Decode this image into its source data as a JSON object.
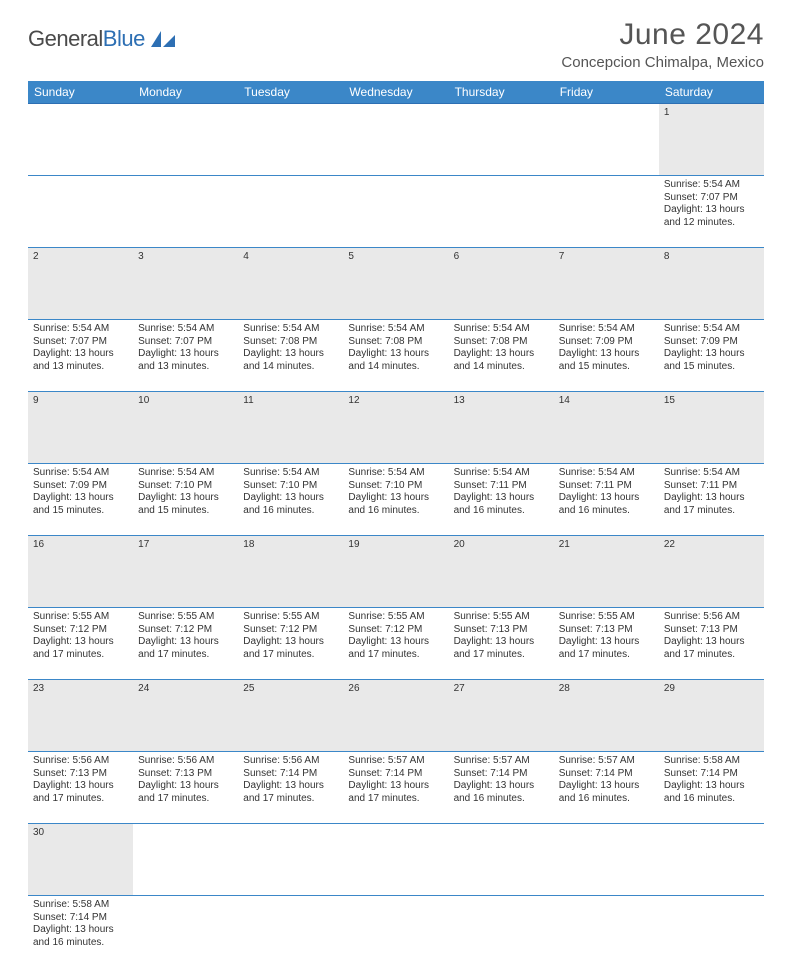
{
  "logo": {
    "text1": "General",
    "text2": "Blue"
  },
  "title": "June 2024",
  "subtitle": "Concepcion Chimalpa, Mexico",
  "colors": {
    "header_bg": "#3b87c8",
    "header_text": "#ffffff",
    "daynum_bg": "#e9e9e9",
    "cell_border": "#3b87c8",
    "text": "#333333",
    "title_text": "#555555",
    "logo_gray": "#4a4a4a",
    "logo_blue": "#2d6fb3"
  },
  "typography": {
    "title_fontsize": 30,
    "subtitle_fontsize": 15,
    "header_fontsize": 12,
    "daynum_fontsize": 11,
    "cell_fontsize": 10
  },
  "dayHeaders": [
    "Sunday",
    "Monday",
    "Tuesday",
    "Wednesday",
    "Thursday",
    "Friday",
    "Saturday"
  ],
  "weeks": [
    [
      null,
      null,
      null,
      null,
      null,
      null,
      {
        "n": "1",
        "sr": "Sunrise: 5:54 AM",
        "ss": "Sunset: 7:07 PM",
        "d1": "Daylight: 13 hours",
        "d2": "and 12 minutes."
      }
    ],
    [
      {
        "n": "2",
        "sr": "Sunrise: 5:54 AM",
        "ss": "Sunset: 7:07 PM",
        "d1": "Daylight: 13 hours",
        "d2": "and 13 minutes."
      },
      {
        "n": "3",
        "sr": "Sunrise: 5:54 AM",
        "ss": "Sunset: 7:07 PM",
        "d1": "Daylight: 13 hours",
        "d2": "and 13 minutes."
      },
      {
        "n": "4",
        "sr": "Sunrise: 5:54 AM",
        "ss": "Sunset: 7:08 PM",
        "d1": "Daylight: 13 hours",
        "d2": "and 14 minutes."
      },
      {
        "n": "5",
        "sr": "Sunrise: 5:54 AM",
        "ss": "Sunset: 7:08 PM",
        "d1": "Daylight: 13 hours",
        "d2": "and 14 minutes."
      },
      {
        "n": "6",
        "sr": "Sunrise: 5:54 AM",
        "ss": "Sunset: 7:08 PM",
        "d1": "Daylight: 13 hours",
        "d2": "and 14 minutes."
      },
      {
        "n": "7",
        "sr": "Sunrise: 5:54 AM",
        "ss": "Sunset: 7:09 PM",
        "d1": "Daylight: 13 hours",
        "d2": "and 15 minutes."
      },
      {
        "n": "8",
        "sr": "Sunrise: 5:54 AM",
        "ss": "Sunset: 7:09 PM",
        "d1": "Daylight: 13 hours",
        "d2": "and 15 minutes."
      }
    ],
    [
      {
        "n": "9",
        "sr": "Sunrise: 5:54 AM",
        "ss": "Sunset: 7:09 PM",
        "d1": "Daylight: 13 hours",
        "d2": "and 15 minutes."
      },
      {
        "n": "10",
        "sr": "Sunrise: 5:54 AM",
        "ss": "Sunset: 7:10 PM",
        "d1": "Daylight: 13 hours",
        "d2": "and 15 minutes."
      },
      {
        "n": "11",
        "sr": "Sunrise: 5:54 AM",
        "ss": "Sunset: 7:10 PM",
        "d1": "Daylight: 13 hours",
        "d2": "and 16 minutes."
      },
      {
        "n": "12",
        "sr": "Sunrise: 5:54 AM",
        "ss": "Sunset: 7:10 PM",
        "d1": "Daylight: 13 hours",
        "d2": "and 16 minutes."
      },
      {
        "n": "13",
        "sr": "Sunrise: 5:54 AM",
        "ss": "Sunset: 7:11 PM",
        "d1": "Daylight: 13 hours",
        "d2": "and 16 minutes."
      },
      {
        "n": "14",
        "sr": "Sunrise: 5:54 AM",
        "ss": "Sunset: 7:11 PM",
        "d1": "Daylight: 13 hours",
        "d2": "and 16 minutes."
      },
      {
        "n": "15",
        "sr": "Sunrise: 5:54 AM",
        "ss": "Sunset: 7:11 PM",
        "d1": "Daylight: 13 hours",
        "d2": "and 17 minutes."
      }
    ],
    [
      {
        "n": "16",
        "sr": "Sunrise: 5:55 AM",
        "ss": "Sunset: 7:12 PM",
        "d1": "Daylight: 13 hours",
        "d2": "and 17 minutes."
      },
      {
        "n": "17",
        "sr": "Sunrise: 5:55 AM",
        "ss": "Sunset: 7:12 PM",
        "d1": "Daylight: 13 hours",
        "d2": "and 17 minutes."
      },
      {
        "n": "18",
        "sr": "Sunrise: 5:55 AM",
        "ss": "Sunset: 7:12 PM",
        "d1": "Daylight: 13 hours",
        "d2": "and 17 minutes."
      },
      {
        "n": "19",
        "sr": "Sunrise: 5:55 AM",
        "ss": "Sunset: 7:12 PM",
        "d1": "Daylight: 13 hours",
        "d2": "and 17 minutes."
      },
      {
        "n": "20",
        "sr": "Sunrise: 5:55 AM",
        "ss": "Sunset: 7:13 PM",
        "d1": "Daylight: 13 hours",
        "d2": "and 17 minutes."
      },
      {
        "n": "21",
        "sr": "Sunrise: 5:55 AM",
        "ss": "Sunset: 7:13 PM",
        "d1": "Daylight: 13 hours",
        "d2": "and 17 minutes."
      },
      {
        "n": "22",
        "sr": "Sunrise: 5:56 AM",
        "ss": "Sunset: 7:13 PM",
        "d1": "Daylight: 13 hours",
        "d2": "and 17 minutes."
      }
    ],
    [
      {
        "n": "23",
        "sr": "Sunrise: 5:56 AM",
        "ss": "Sunset: 7:13 PM",
        "d1": "Daylight: 13 hours",
        "d2": "and 17 minutes."
      },
      {
        "n": "24",
        "sr": "Sunrise: 5:56 AM",
        "ss": "Sunset: 7:13 PM",
        "d1": "Daylight: 13 hours",
        "d2": "and 17 minutes."
      },
      {
        "n": "25",
        "sr": "Sunrise: 5:56 AM",
        "ss": "Sunset: 7:14 PM",
        "d1": "Daylight: 13 hours",
        "d2": "and 17 minutes."
      },
      {
        "n": "26",
        "sr": "Sunrise: 5:57 AM",
        "ss": "Sunset: 7:14 PM",
        "d1": "Daylight: 13 hours",
        "d2": "and 17 minutes."
      },
      {
        "n": "27",
        "sr": "Sunrise: 5:57 AM",
        "ss": "Sunset: 7:14 PM",
        "d1": "Daylight: 13 hours",
        "d2": "and 16 minutes."
      },
      {
        "n": "28",
        "sr": "Sunrise: 5:57 AM",
        "ss": "Sunset: 7:14 PM",
        "d1": "Daylight: 13 hours",
        "d2": "and 16 minutes."
      },
      {
        "n": "29",
        "sr": "Sunrise: 5:58 AM",
        "ss": "Sunset: 7:14 PM",
        "d1": "Daylight: 13 hours",
        "d2": "and 16 minutes."
      }
    ],
    [
      {
        "n": "30",
        "sr": "Sunrise: 5:58 AM",
        "ss": "Sunset: 7:14 PM",
        "d1": "Daylight: 13 hours",
        "d2": "and 16 minutes."
      },
      null,
      null,
      null,
      null,
      null,
      null
    ]
  ]
}
